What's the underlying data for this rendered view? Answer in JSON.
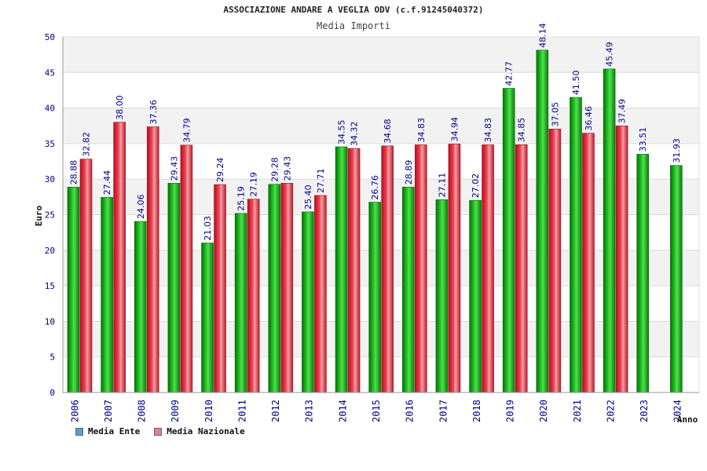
{
  "colors": {
    "ente": "#1fa81f",
    "nazionale": "#e0303a",
    "legend_ente": "#5b9bd5",
    "legend_nazionale": "#e87aa0",
    "grid_band": "#f2f2f2",
    "tick_text": "#00008b"
  },
  "chart_data": {
    "type": "bar",
    "title": "ASSOCIAZIONE ANDARE A VEGLIA ODV (c.f.91245040372)",
    "subtitle": "Media Importi",
    "xlabel": "Anno",
    "ylabel": "Euro",
    "ylim": [
      0,
      50
    ],
    "yticks": [
      0,
      5,
      10,
      15,
      20,
      25,
      30,
      35,
      40,
      45,
      50
    ],
    "grid": true,
    "legend_position": "bottom-left",
    "categories": [
      "2006",
      "2007",
      "2008",
      "2009",
      "2010",
      "2011",
      "2012",
      "2013",
      "2014",
      "2015",
      "2016",
      "2017",
      "2018",
      "2019",
      "2020",
      "2021",
      "2022",
      "2023",
      "2024"
    ],
    "series": [
      {
        "name": "Media Ente",
        "values": [
          28.88,
          27.44,
          24.06,
          29.43,
          21.03,
          25.19,
          29.28,
          25.4,
          34.55,
          26.76,
          28.89,
          27.11,
          27.02,
          42.77,
          48.14,
          41.5,
          45.49,
          33.51,
          31.93
        ],
        "labels": [
          "28.88",
          "27.44",
          "24.06",
          "29.43",
          "21.03",
          "25.19",
          "29.28",
          "25.40",
          "34.55",
          "26.76",
          "28.89",
          "27.11",
          "27.02",
          "42.77",
          "48.14",
          "41.50",
          "45.49",
          "33.51",
          "31.93"
        ]
      },
      {
        "name": "Media Nazionale",
        "values": [
          32.82,
          38.0,
          37.36,
          34.79,
          29.24,
          27.19,
          29.43,
          27.71,
          34.32,
          34.68,
          34.83,
          34.94,
          34.83,
          34.85,
          37.05,
          36.46,
          37.49,
          null,
          null
        ],
        "labels": [
          "32.82",
          "38.00",
          "37.36",
          "34.79",
          "29.24",
          "27.19",
          "29.43",
          "27.71",
          "34.32",
          "34.68",
          "34.83",
          "34.94",
          "34.83",
          "34.85",
          "37.05",
          "36.46",
          "37.49",
          "",
          ""
        ]
      }
    ]
  }
}
